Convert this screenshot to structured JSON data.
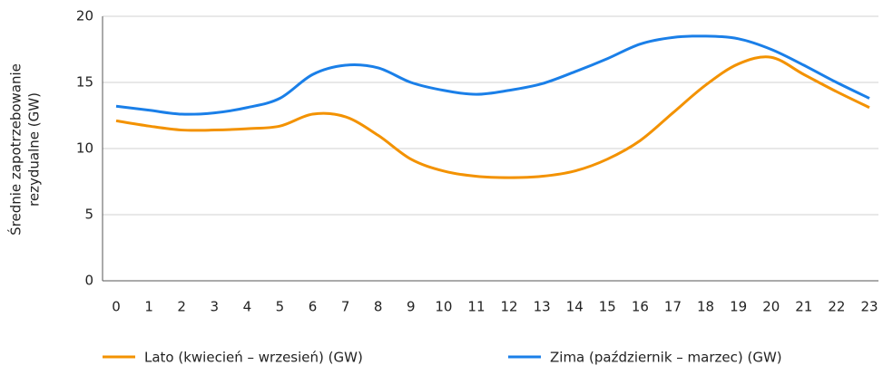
{
  "chart_data": {
    "type": "line",
    "ylabel": [
      "Średnie zapotrzebowanie",
      "rezydualne (GW)"
    ],
    "categories": [
      "0",
      "1",
      "2",
      "3",
      "4",
      "5",
      "6",
      "7",
      "8",
      "9",
      "10",
      "11",
      "12",
      "13",
      "14",
      "15",
      "16",
      "17",
      "18",
      "19",
      "20",
      "21",
      "22",
      "23"
    ],
    "series": [
      {
        "name": "Lato (kwiecień – wrzesień) (GW)",
        "color": "#f39200",
        "values": [
          12.1,
          11.7,
          11.4,
          11.4,
          11.5,
          11.7,
          12.6,
          12.4,
          11.0,
          9.2,
          8.3,
          7.9,
          7.8,
          7.9,
          8.3,
          9.2,
          10.6,
          12.7,
          14.8,
          16.4,
          16.9,
          15.6,
          14.3,
          13.1
        ]
      },
      {
        "name": "Zima (październik – marzec) (GW)",
        "color": "#1a7fe8",
        "values": [
          13.2,
          12.9,
          12.6,
          12.7,
          13.1,
          13.8,
          15.6,
          16.3,
          16.1,
          15.0,
          14.4,
          14.1,
          14.4,
          14.9,
          15.8,
          16.8,
          17.9,
          18.4,
          18.5,
          18.3,
          17.5,
          16.3,
          15.0,
          13.8
        ]
      }
    ],
    "ylim": [
      0,
      20
    ],
    "yticks": [
      0,
      5,
      10,
      15,
      20
    ],
    "grid": true,
    "legend": "bottom"
  }
}
